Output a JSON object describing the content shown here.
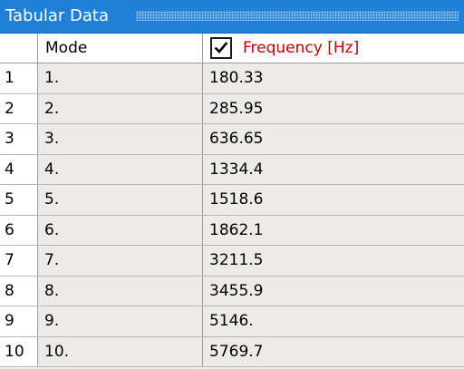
{
  "panel": {
    "title": "Tabular Data"
  },
  "table": {
    "columns": {
      "mode": "Mode",
      "frequency": "Frequency [Hz]"
    },
    "frequency_checked": true,
    "rows": [
      {
        "index": "1",
        "mode": "1.",
        "frequency": "180.33"
      },
      {
        "index": "2",
        "mode": "2.",
        "frequency": "285.95"
      },
      {
        "index": "3",
        "mode": "3.",
        "frequency": "636.65"
      },
      {
        "index": "4",
        "mode": "4.",
        "frequency": "1334.4"
      },
      {
        "index": "5",
        "mode": "5.",
        "frequency": "1518.6"
      },
      {
        "index": "6",
        "mode": "6.",
        "frequency": "1862.1"
      },
      {
        "index": "7",
        "mode": "7.",
        "frequency": "3211.5"
      },
      {
        "index": "8",
        "mode": "8.",
        "frequency": "3455.9"
      },
      {
        "index": "9",
        "mode": "9.",
        "frequency": "5146."
      },
      {
        "index": "10",
        "mode": "10.",
        "frequency": "5769.7"
      }
    ]
  },
  "colors": {
    "titlebar": "#1e80d6",
    "frequency_header": "#c00000",
    "row_background": "#ecebe9"
  },
  "icons": {
    "checkbox": "checkmark-icon"
  }
}
